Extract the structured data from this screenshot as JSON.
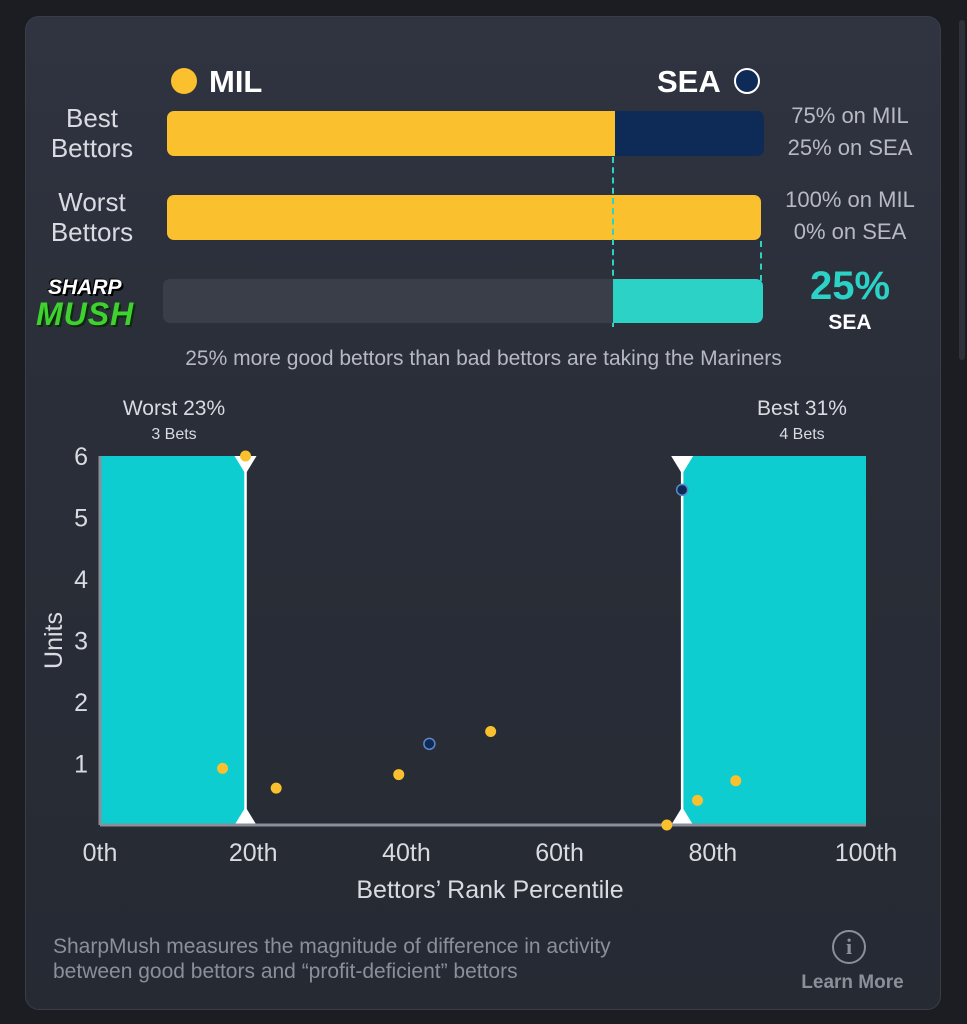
{
  "teams": {
    "left": {
      "abbr": "MIL",
      "color": "#fbc02d"
    },
    "right": {
      "abbr": "SEA",
      "color": "#0d2b56"
    }
  },
  "rows": [
    {
      "label_line1": "Best",
      "label_line2": "Bettors",
      "left_pct": 75,
      "right_pct": 25,
      "text_line1": "75% on MIL",
      "text_line2": "25% on SEA"
    },
    {
      "label_line1": "Worst",
      "label_line2": "Bettors",
      "left_pct": 100,
      "right_pct": 0,
      "text_line1": "100% on MIL",
      "text_line2": "0% on SEA"
    }
  ],
  "sharpmush": {
    "logo_top": "SHARP",
    "logo_bottom": "MUSH",
    "value": 25,
    "value_text": "25%",
    "team_text": "SEA",
    "accent": "#2bd2c5",
    "caption": "25% more good bettors than bad bettors are taking the Mariners"
  },
  "chart_data": {
    "type": "scatter",
    "xlabel": "Bettors’ Rank Percentile",
    "ylabel": "Units",
    "xlim": [
      0,
      100
    ],
    "ylim": [
      0,
      6
    ],
    "x_ticks": [
      "0th",
      "20th",
      "40th",
      "60th",
      "80th",
      "100th"
    ],
    "y_ticks": [
      "1",
      "2",
      "3",
      "4",
      "5",
      "6"
    ],
    "regions": [
      {
        "name": "Worst",
        "title": "Worst 23%",
        "subtitle": "3 Bets",
        "from": 0,
        "to": 19,
        "color": "#0dcdd1"
      },
      {
        "name": "Best",
        "title": "Best 31%",
        "subtitle": "4 Bets",
        "from": 76,
        "to": 100,
        "color": "#0dcdd1"
      }
    ],
    "series": [
      {
        "name": "MIL",
        "color": "#fbc02d",
        "points": [
          [
            16,
            0.92
          ],
          [
            19,
            6.0
          ],
          [
            23,
            0.6
          ],
          [
            39,
            0.82
          ],
          [
            51,
            1.52
          ],
          [
            74,
            0.0
          ],
          [
            78,
            0.4
          ],
          [
            83,
            0.72
          ]
        ]
      },
      {
        "name": "SEA",
        "color": "#0d2b56",
        "points": [
          [
            43,
            1.32
          ],
          [
            76,
            5.45
          ]
        ]
      }
    ]
  },
  "footer": {
    "line1": "SharpMush measures the magnitude of difference in activity",
    "line2": "between good bettors and “profit-deficient” bettors",
    "learn_more": "Learn More",
    "info_icon": "info-icon"
  }
}
